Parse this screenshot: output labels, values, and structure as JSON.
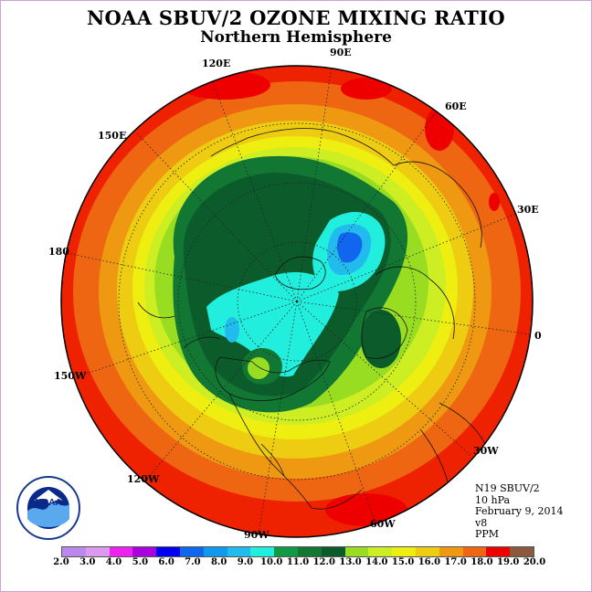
{
  "title": "NOAA SBUV/2 OZONE MIXING RATIO",
  "subtitle": "Northern Hemisphere",
  "longitude_labels": {
    "lon_90e": "90E",
    "lon_120e": "120E",
    "lon_60e": "60E",
    "lon_150e": "150E",
    "lon_30e": "30E",
    "lon_180": "180",
    "lon_0": "0",
    "lon_150w": "150W",
    "lon_30w": "30W",
    "lon_120w": "120W",
    "lon_60w": "60W",
    "lon_90w": "90W"
  },
  "info": {
    "instrument": "N19 SBUV/2",
    "level": "10 hPa",
    "date": "February 9, 2014",
    "version": "v8",
    "units": "PPM"
  },
  "logo_text": "NOAA",
  "colorbar": {
    "ticks": [
      "2.0",
      "3.0",
      "4.0",
      "5.0",
      "6.0",
      "7.0",
      "8.0",
      "9.0",
      "10.0",
      "11.0",
      "12.0",
      "13.0",
      "14.0",
      "15.0",
      "16.0",
      "17.0",
      "18.0",
      "19.0",
      "20.0"
    ],
    "colors": [
      "#bb88ee",
      "#dd99ee",
      "#ee22ee",
      "#aa00dd",
      "#0000ee",
      "#1166ee",
      "#1199ee",
      "#22bbee",
      "#22eedd",
      "#119944",
      "#117733",
      "#0b5c2a",
      "#99dd22",
      "#ccee22",
      "#eeee11",
      "#eecc11",
      "#ee9911",
      "#ee6611",
      "#ee0000",
      "#8b5a3c"
    ]
  },
  "map_legend_colors": {
    "outer_ring": "#ee2200",
    "ring_1": "#ee6611",
    "ring_2": "#ee9911",
    "ring_3": "#eecc11",
    "ring_4": "#eeee11",
    "ring_5": "#ccee22",
    "ring_6": "#99dd22",
    "vortex_edge": "#117733",
    "vortex_inner": "#0b5c2a",
    "core_cyan": "#22eedd",
    "core_blue": "#22bbee",
    "core_deep": "#1166ee"
  }
}
